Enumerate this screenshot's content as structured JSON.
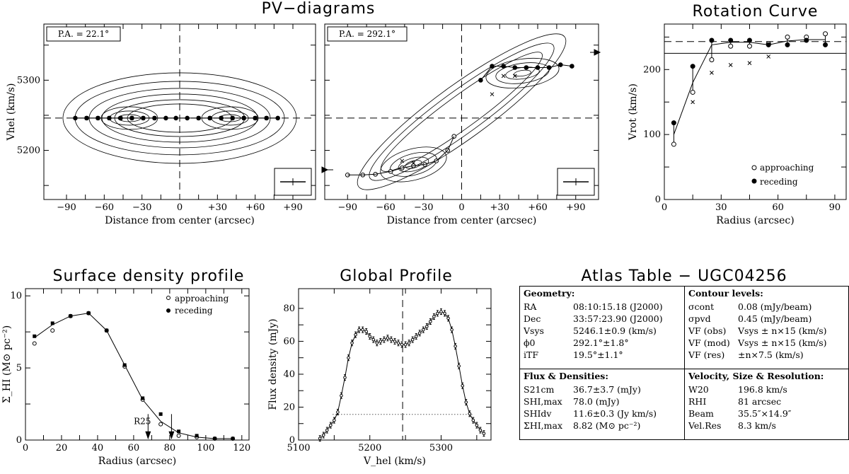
{
  "titles": {
    "pv": "PV−diagrams",
    "rot": "Rotation Curve",
    "sd": "Surface density profile",
    "gp": "Global Profile",
    "atlas": "Atlas Table − UGC04256"
  },
  "chart_data": [
    {
      "id": "pv1",
      "type": "contour",
      "annotation": "P.A. = 22.1°",
      "xlabel": "Distance from center (arcsec)",
      "ylabel": "V_hel (km/s)",
      "xlim": [
        -108,
        108
      ],
      "ylim": [
        5130,
        5380
      ],
      "xticks": [
        "−90",
        "−60",
        "−30",
        "0",
        "+30",
        "+60",
        "+90"
      ],
      "yticks": [
        5200,
        5300
      ],
      "systemic_velocity": 5246,
      "points_filled": [
        [
          -83,
          5246
        ],
        [
          -74,
          5246
        ],
        [
          -65,
          5246
        ],
        [
          -56,
          5246
        ],
        [
          -47,
          5246
        ],
        [
          -38,
          5246
        ],
        [
          -29,
          5246
        ],
        [
          -20,
          5246
        ],
        [
          -11,
          5246
        ],
        [
          -3,
          5246
        ],
        [
          6,
          5246
        ],
        [
          15,
          5246
        ],
        [
          24,
          5246
        ],
        [
          33,
          5246
        ],
        [
          42,
          5246
        ],
        [
          51,
          5246
        ],
        [
          60,
          5246
        ],
        [
          69,
          5246
        ],
        [
          78,
          5246
        ]
      ],
      "points_cross": [
        [
          -74,
          5246
        ],
        [
          -65,
          5246
        ],
        [
          -56,
          5246
        ],
        [
          -47,
          5246
        ],
        [
          -38,
          5246
        ],
        [
          -29,
          5246
        ],
        [
          -20,
          5246
        ],
        [
          15,
          5246
        ],
        [
          24,
          5246
        ],
        [
          33,
          5246
        ],
        [
          42,
          5246
        ],
        [
          51,
          5246
        ],
        [
          60,
          5246
        ],
        [
          69,
          5246
        ]
      ]
    },
    {
      "id": "pv2",
      "type": "contour",
      "annotation": "P.A. = 292.1°",
      "xlabel": "Distance from center (arcsec)",
      "xlim": [
        -108,
        108
      ],
      "ylim": [
        5130,
        5380
      ],
      "xticks": [
        "−90",
        "−60",
        "−30",
        "0",
        "+30",
        "+60",
        "+90"
      ],
      "systemic_velocity": 5246,
      "points_filled": [
        [
          15,
          5300
        ],
        [
          24,
          5320
        ],
        [
          33,
          5320
        ],
        [
          42,
          5318
        ],
        [
          51,
          5318
        ],
        [
          60,
          5318
        ],
        [
          69,
          5318
        ],
        [
          78,
          5322
        ],
        [
          87,
          5320
        ]
      ],
      "points_open": [
        [
          -90,
          5165
        ],
        [
          -78,
          5165
        ],
        [
          -68,
          5166
        ],
        [
          -56,
          5170
        ],
        [
          -47,
          5175
        ],
        [
          -38,
          5178
        ],
        [
          -29,
          5180
        ],
        [
          -20,
          5185
        ],
        [
          -11,
          5200
        ],
        [
          -6,
          5220
        ]
      ],
      "points_cross": [
        [
          -47,
          5185
        ],
        [
          -38,
          5182
        ],
        [
          33,
          5306
        ],
        [
          42,
          5306
        ],
        [
          24,
          5280
        ]
      ]
    },
    {
      "id": "rot",
      "type": "line",
      "xlabel": "Radius (arcsec)",
      "ylabel": "V_rot (km/s)",
      "xlim": [
        0,
        96
      ],
      "ylim": [
        0,
        270
      ],
      "xticks": [
        0,
        30,
        60,
        90
      ],
      "yticks": [
        0,
        100,
        200
      ],
      "hlines": [
        225,
        243
      ],
      "model": {
        "x": [
          5,
          15,
          25,
          35,
          45,
          55,
          65,
          75,
          85
        ],
        "y": [
          100,
          180,
          238,
          242,
          242,
          238,
          244,
          246,
          246
        ]
      },
      "series": [
        {
          "name": "approaching",
          "x": [
            5,
            15,
            25,
            35,
            45,
            55,
            65,
            75,
            85
          ],
          "y": [
            85,
            165,
            215,
            236,
            236,
            240,
            250,
            250,
            255
          ]
        },
        {
          "name": "receding",
          "x": [
            5,
            15,
            25,
            35,
            45,
            55,
            65,
            75,
            85
          ],
          "y": [
            118,
            205,
            245,
            245,
            245,
            238,
            238,
            245,
            238
          ]
        },
        {
          "x": [
            15,
            25,
            35,
            45,
            55
          ],
          "y": [
            150,
            195,
            207,
            210,
            220
          ]
        }
      ]
    },
    {
      "id": "sd",
      "type": "line",
      "xlabel": "Radius (arcsec)",
      "ylabel": "Σ_HI (M⊙ pc⁻²)",
      "xlim": [
        0,
        124
      ],
      "ylim": [
        0,
        10.5
      ],
      "xticks": [
        0,
        20,
        40,
        60,
        80,
        100,
        120
      ],
      "yticks": [
        0,
        5,
        10
      ],
      "annotation": "R25",
      "arrows": [
        68,
        81
      ],
      "model": {
        "x": [
          5,
          15,
          25,
          35,
          45,
          55,
          65,
          75,
          85,
          95,
          105,
          115
        ],
        "y": [
          7.1,
          8.0,
          8.6,
          8.8,
          7.6,
          5.2,
          2.8,
          1.3,
          0.5,
          0.2,
          0.1,
          0.1
        ]
      },
      "series": [
        {
          "name": "approaching",
          "x": [
            5,
            15,
            25,
            35,
            45,
            55,
            65,
            75,
            85,
            95,
            105,
            115
          ],
          "y": [
            6.7,
            7.6,
            8.6,
            8.8,
            7.6,
            5.1,
            2.8,
            1.1,
            0.3,
            0.2,
            0.1,
            0.1
          ]
        },
        {
          "name": "receding",
          "x": [
            5,
            15,
            25,
            35,
            45,
            55,
            65,
            75,
            85,
            95,
            105,
            115
          ],
          "y": [
            7.2,
            8.1,
            8.6,
            8.8,
            7.6,
            5.2,
            2.9,
            1.8,
            0.6,
            0.3,
            0.1,
            0.1
          ]
        }
      ]
    },
    {
      "id": "gp",
      "type": "line",
      "xlabel": "V_hel (km/s)",
      "ylabel": "Flux density (mJy)",
      "xlim": [
        5100,
        5370
      ],
      "ylim": [
        0,
        92
      ],
      "xticks": [
        5100,
        5200,
        5300
      ],
      "yticks": [
        0,
        20,
        40,
        60,
        80
      ],
      "systemic_velocity": 5246,
      "dotted_level": 15.6,
      "x": [
        5130,
        5135,
        5140,
        5145,
        5150,
        5155,
        5160,
        5165,
        5170,
        5175,
        5180,
        5185,
        5190,
        5195,
        5200,
        5205,
        5210,
        5215,
        5220,
        5225,
        5230,
        5235,
        5240,
        5245,
        5250,
        5255,
        5260,
        5265,
        5270,
        5275,
        5280,
        5285,
        5290,
        5295,
        5300,
        5305,
        5310,
        5315,
        5320,
        5325,
        5330,
        5335,
        5340,
        5345,
        5350,
        5355,
        5360
      ],
      "y": [
        1,
        3,
        6,
        9,
        12,
        17,
        27,
        38,
        50,
        59,
        64,
        67,
        67,
        66,
        63,
        61,
        59,
        60,
        61,
        62,
        61,
        60,
        59,
        58,
        58,
        59,
        61,
        63,
        65,
        67,
        69,
        72,
        75,
        77,
        78,
        77,
        74,
        67,
        57,
        45,
        33,
        23,
        16,
        12,
        9,
        6,
        4
      ]
    }
  ],
  "atlas": {
    "geometry": {
      "heading": "Geometry:",
      "rows": [
        {
          "k": "RA",
          "v": "08:10:15.18 (J2000)"
        },
        {
          "k": "Dec",
          "v": "33:57:23.90 (J2000)"
        },
        {
          "k": "Vsys",
          "v": "5246.1±0.9 (km/s)"
        },
        {
          "k": "ϕ0",
          "v": "292.1°±1.8°"
        },
        {
          "k": "iTF",
          "v": "19.5°±1.1°"
        }
      ]
    },
    "contours": {
      "heading": "Contour levels:",
      "rows": [
        {
          "k": "σcont",
          "v": "0.08 (mJy/beam)"
        },
        {
          "k": "σpvd",
          "v": "0.45 (mJy/beam)"
        },
        {
          "k": "VF (obs)",
          "v": "Vsys ± n×15 (km/s)"
        },
        {
          "k": "VF (mod)",
          "v": "Vsys ± n×15 (km/s)"
        },
        {
          "k": "VF (res)",
          "v": "±n×7.5 (km/s)"
        }
      ]
    },
    "flux": {
      "heading": "Flux & Densities:",
      "rows": [
        {
          "k": "S21cm",
          "v": "36.7±3.7 (mJy)"
        },
        {
          "k": "SHI,max",
          "v": "78.0 (mJy)"
        },
        {
          "k": "SHIdv",
          "v": "11.6±0.3 (Jy km/s)"
        },
        {
          "k": "ΣHI,max",
          "v": "8.82 (M⊙ pc⁻²)"
        }
      ]
    },
    "velocity": {
      "heading": "Velocity, Size & Resolution:",
      "rows": [
        {
          "k": "W20",
          "v": "196.8 km/s"
        },
        {
          "k": "RHI",
          "v": "81 arcsec"
        },
        {
          "k": "Beam",
          "v": "35.5″×14.9″"
        },
        {
          "k": "Vel.Res",
          "v": "8.3 km/s"
        }
      ]
    }
  }
}
